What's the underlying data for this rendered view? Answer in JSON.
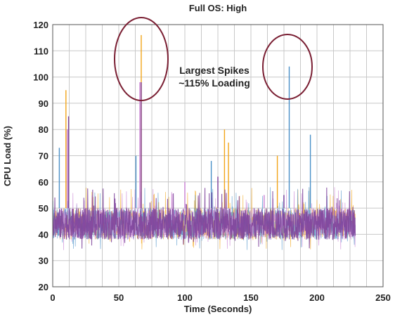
{
  "chart_data": {
    "type": "line",
    "title": "Full OS: High",
    "xlabel": "Time (Seconds)",
    "ylabel": "CPU Load (%)",
    "xlim": [
      0,
      250
    ],
    "ylim": [
      20,
      120
    ],
    "xticks": [
      "0",
      "50",
      "100",
      "150",
      "200",
      "250"
    ],
    "yticks": [
      "20",
      "30",
      "40",
      "50",
      "60",
      "70",
      "80",
      "90",
      "100",
      "110",
      "120"
    ],
    "x_range_of_data": [
      0,
      229
    ],
    "grid": true,
    "baseline_band_percent": [
      38,
      50
    ],
    "series": [
      {
        "color": "#f2a51a",
        "peaks": [
          [
            10,
            95
          ],
          [
            67,
            116
          ],
          [
            130,
            80
          ],
          [
            133,
            75
          ],
          [
            170,
            70
          ]
        ]
      },
      {
        "color": "#4a90c8",
        "peaks": [
          [
            5,
            73
          ],
          [
            63,
            70
          ],
          [
            120,
            68
          ],
          [
            179,
            104
          ],
          [
            195,
            78
          ]
        ]
      },
      {
        "color": "#c77dd1",
        "peaks": [
          [
            11,
            80
          ],
          [
            66,
            98
          ],
          [
            100,
            60
          ],
          [
            160,
            55
          ],
          [
            215,
            52
          ]
        ]
      },
      {
        "color": "#7b3f99",
        "peaks": [
          [
            12,
            85
          ],
          [
            67,
            98
          ],
          [
            125,
            62
          ],
          [
            175,
            55
          ],
          [
            220,
            50
          ]
        ]
      }
    ],
    "annotations": [
      {
        "text_lines": [
          "Largest Spikes",
          "~115% Loading"
        ],
        "highlighted_spikes": [
          [
            67,
            116
          ],
          [
            179,
            104
          ]
        ]
      }
    ]
  }
}
